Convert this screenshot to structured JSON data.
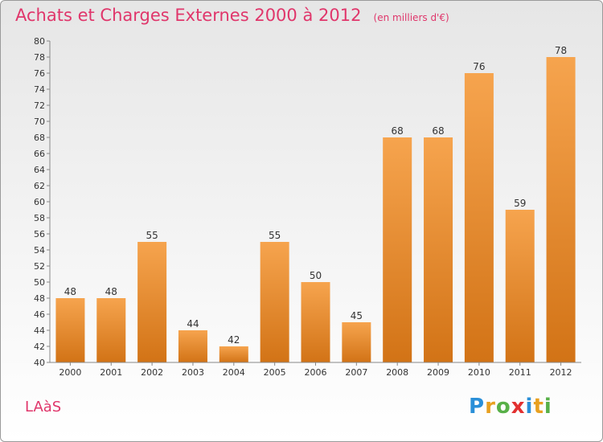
{
  "header": {
    "title": "Achats et Charges Externes 2000 à 2012",
    "subtitle": "(en milliers d'€)"
  },
  "footer": {
    "commune": "LAàS",
    "logo": "Proxiti"
  },
  "colors": {
    "accent_text": "#e0366b",
    "bar_light": "#f6a44e",
    "bar_dark": "#d27316"
  },
  "chart_data": {
    "type": "bar",
    "categories": [
      "2000",
      "2001",
      "2002",
      "2003",
      "2004",
      "2005",
      "2006",
      "2007",
      "2008",
      "2009",
      "2010",
      "2011",
      "2012"
    ],
    "values": [
      48,
      48,
      55,
      44,
      42,
      55,
      50,
      45,
      68,
      68,
      76,
      59,
      78
    ],
    "ylim": [
      40,
      80
    ],
    "ytick_step": 2,
    "grid": false,
    "title": "Achats et Charges Externes 2000 à 2012",
    "subtitle": "(en milliers d'€)",
    "xlabel": "",
    "ylabel": ""
  }
}
